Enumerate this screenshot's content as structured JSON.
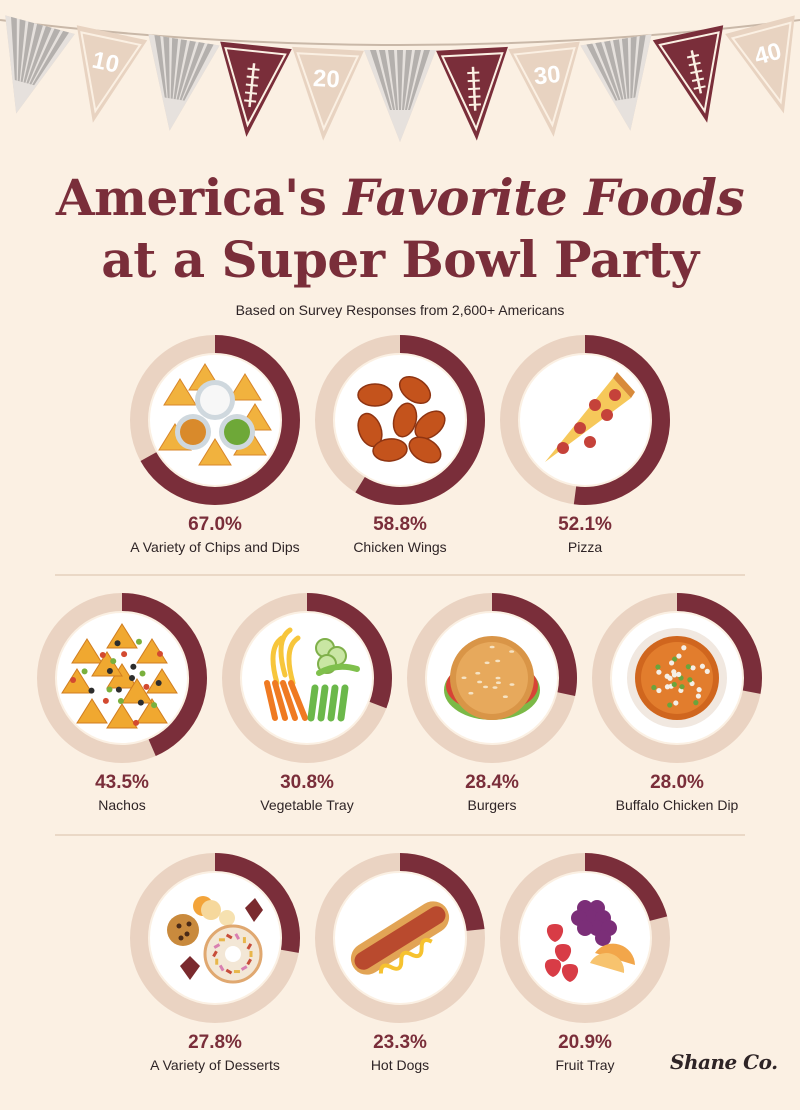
{
  "banner": {
    "flags": [
      "stripe",
      "10",
      "stripe",
      "football",
      "20",
      "stripe",
      "football",
      "30",
      "stripe",
      "football",
      "40"
    ],
    "yard_labels": [
      "10",
      "20",
      "30",
      "40"
    ]
  },
  "header": {
    "title_part1": "America's ",
    "title_italic": "Favorite Foods",
    "title_line2": "at a Super Bowl Party",
    "subtitle": "Based on Survey Responses from 2,600+ Americans"
  },
  "colors": {
    "background": "#fbf0e3",
    "ring_track": "#ead3c2",
    "ring_fill": "#7a2e3a",
    "accent_text": "#7a2e3a"
  },
  "chart_data": {
    "type": "donut",
    "items": [
      {
        "label": "A Variety of Chips and Dips",
        "value": 67.0,
        "display": "67.0%",
        "icon": "chips-and-dips-icon"
      },
      {
        "label": "Chicken Wings",
        "value": 58.8,
        "display": "58.8%",
        "icon": "chicken-wings-icon"
      },
      {
        "label": "Pizza",
        "value": 52.1,
        "display": "52.1%",
        "icon": "pizza-icon"
      },
      {
        "label": "Nachos",
        "value": 43.5,
        "display": "43.5%",
        "icon": "nachos-icon"
      },
      {
        "label": "Vegetable Tray",
        "value": 30.8,
        "display": "30.8%",
        "icon": "vegetable-tray-icon"
      },
      {
        "label": "Burgers",
        "value": 28.4,
        "display": "28.4%",
        "icon": "burger-icon"
      },
      {
        "label": "Buffalo Chicken Dip",
        "value": 28.0,
        "display": "28.0%",
        "icon": "buffalo-dip-icon"
      },
      {
        "label": "A Variety of Desserts",
        "value": 27.8,
        "display": "27.8%",
        "icon": "desserts-icon"
      },
      {
        "label": "Hot Dogs",
        "value": 23.3,
        "display": "23.3%",
        "icon": "hot-dog-icon"
      },
      {
        "label": "Fruit Tray",
        "value": 20.9,
        "display": "20.9%",
        "icon": "fruit-tray-icon"
      }
    ]
  },
  "footer": {
    "logo_text": "Shane Co."
  }
}
